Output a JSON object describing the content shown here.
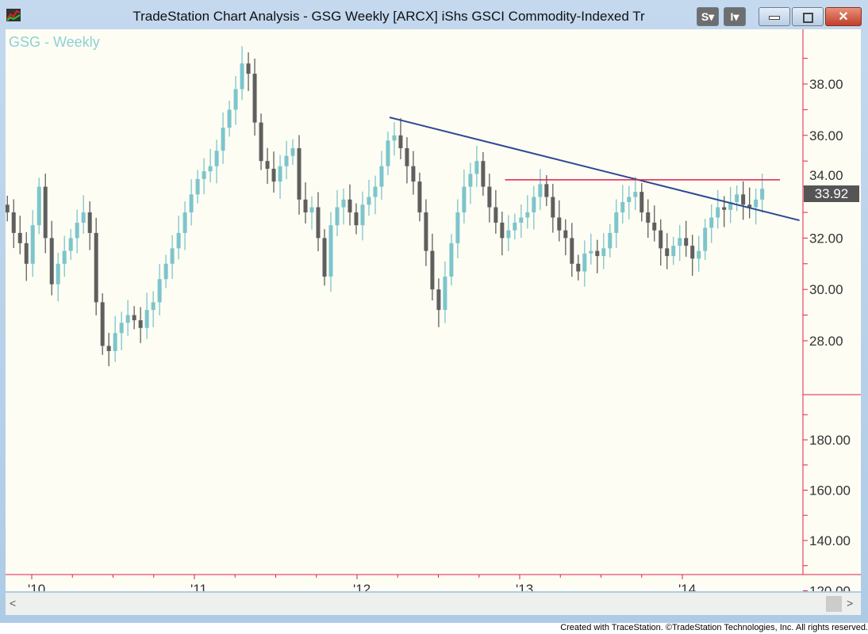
{
  "window": {
    "title": "TradeStation Chart Analysis - GSG Weekly [ARCX] iShs GSCI Commodity-Indexed Tr",
    "btn_s": "S",
    "btn_i": "I"
  },
  "chart_label": "GSG - Weekly",
  "last_price": "33.92",
  "footer": "Created with TraceStation. ©TradeStation Technologies, Inc. All rights reserved.",
  "colors": {
    "up": "#7cc5cc",
    "down": "#5f5f5f",
    "axis": "#e0204a",
    "trend": "#2c4a94",
    "resistance": "#e0204a"
  },
  "chart_data": {
    "type": "candlestick",
    "symbol": "GSG",
    "interval": "Weekly (sampled biweekly)",
    "x_start": 2009.85,
    "x_step_years": 0.039,
    "closes": [
      33.0,
      32.2,
      31.8,
      31.0,
      32.5,
      34.0,
      32,
      30.2,
      31,
      31.5,
      32,
      32.6,
      33,
      32.2,
      29.5,
      27.8,
      27.6,
      28.3,
      28.7,
      29,
      28.8,
      28.5,
      29.2,
      29.5,
      30.4,
      31,
      31.6,
      32.2,
      33,
      33.7,
      34.3,
      34.6,
      34.8,
      35.4,
      36.3,
      37,
      37.8,
      38.8,
      38.4,
      36.5,
      35,
      34.7,
      34.2,
      34.8,
      35.2,
      35.5,
      33.5,
      33,
      33.2,
      32,
      30.5,
      32.5,
      33.2,
      33.5,
      33,
      32.5,
      33.3,
      33.6,
      34,
      34.8,
      35.8,
      36,
      35.5,
      34.8,
      34.2,
      33,
      31.5,
      30,
      29.2,
      30.5,
      31.8,
      33,
      34,
      34.5,
      35,
      34,
      33.2,
      32.6,
      32,
      32.3,
      32.6,
      32.8,
      33,
      33.6,
      34.1,
      33.6,
      32.8,
      32.3,
      32,
      31,
      30.7,
      31.4,
      31.5,
      31.3,
      31.6,
      32.2,
      33,
      33.4,
      33.6,
      33.8,
      33,
      32.6,
      32.3,
      31.6,
      31.3,
      31.7,
      32,
      31.7,
      31.2,
      31.5,
      32.4,
      32.8,
      33.2,
      33.1,
      33.4,
      33.7,
      33.3,
      33.2,
      33.5,
      33.92
    ],
    "price_ticks": [
      "38.00",
      "36.00",
      "34.00",
      "32.00",
      "30.00",
      "28.00"
    ],
    "price_tick_values": [
      38,
      36,
      34,
      32,
      30,
      28
    ],
    "lower_ticks": [
      "180.00",
      "160.00",
      "140.00",
      "120.00"
    ],
    "lower_tick_values": [
      180,
      160,
      140,
      120
    ],
    "x_ticks": [
      "'10",
      "'11",
      "'12",
      "'13",
      "'14"
    ],
    "x_tick_values": [
      2010,
      2011,
      2012,
      2013,
      2014
    ],
    "trendline": {
      "x": [
        2012.2,
        2014.72
      ],
      "y": [
        36.7,
        32.69
      ]
    },
    "resistance": {
      "x": [
        2012.91,
        2014.6
      ],
      "y": [
        34.27,
        34.27
      ]
    }
  }
}
